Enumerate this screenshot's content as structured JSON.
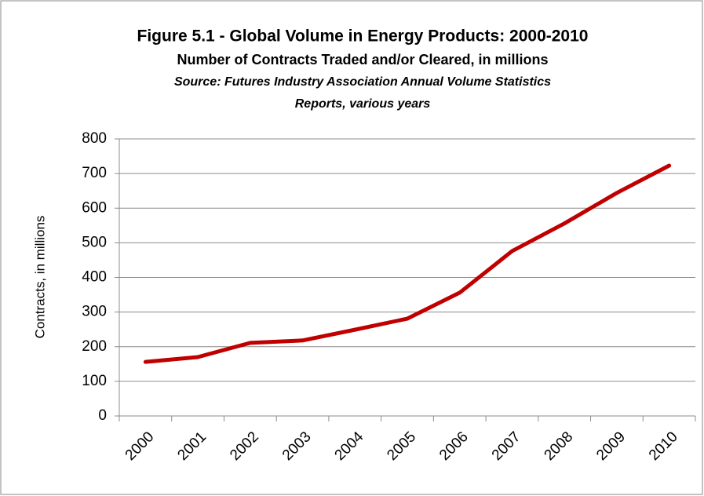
{
  "chart_data": {
    "type": "line",
    "title": "Figure 5.1 - Global Volume in Energy Products: 2000-2010",
    "subtitle": "Number of Contracts Traded and/or Cleared, in millions",
    "source": [
      "Source: Futures Industry Association Annual Volume Statistics",
      "Reports, various years"
    ],
    "y_label": "Contracts, in millions",
    "categories": [
      "2000",
      "2001",
      "2002",
      "2003",
      "2004",
      "2005",
      "2006",
      "2007",
      "2008",
      "2009",
      "2010"
    ],
    "series": [
      {
        "name": "Contracts",
        "color": "#c00000",
        "values": [
          156,
          170,
          211,
          218,
          249,
          281,
          356,
          476,
          556,
          644,
          723
        ]
      }
    ],
    "ylim": [
      0,
      800
    ],
    "yticks": [
      0,
      100,
      200,
      300,
      400,
      500,
      600,
      700,
      800
    ],
    "grid": true
  }
}
